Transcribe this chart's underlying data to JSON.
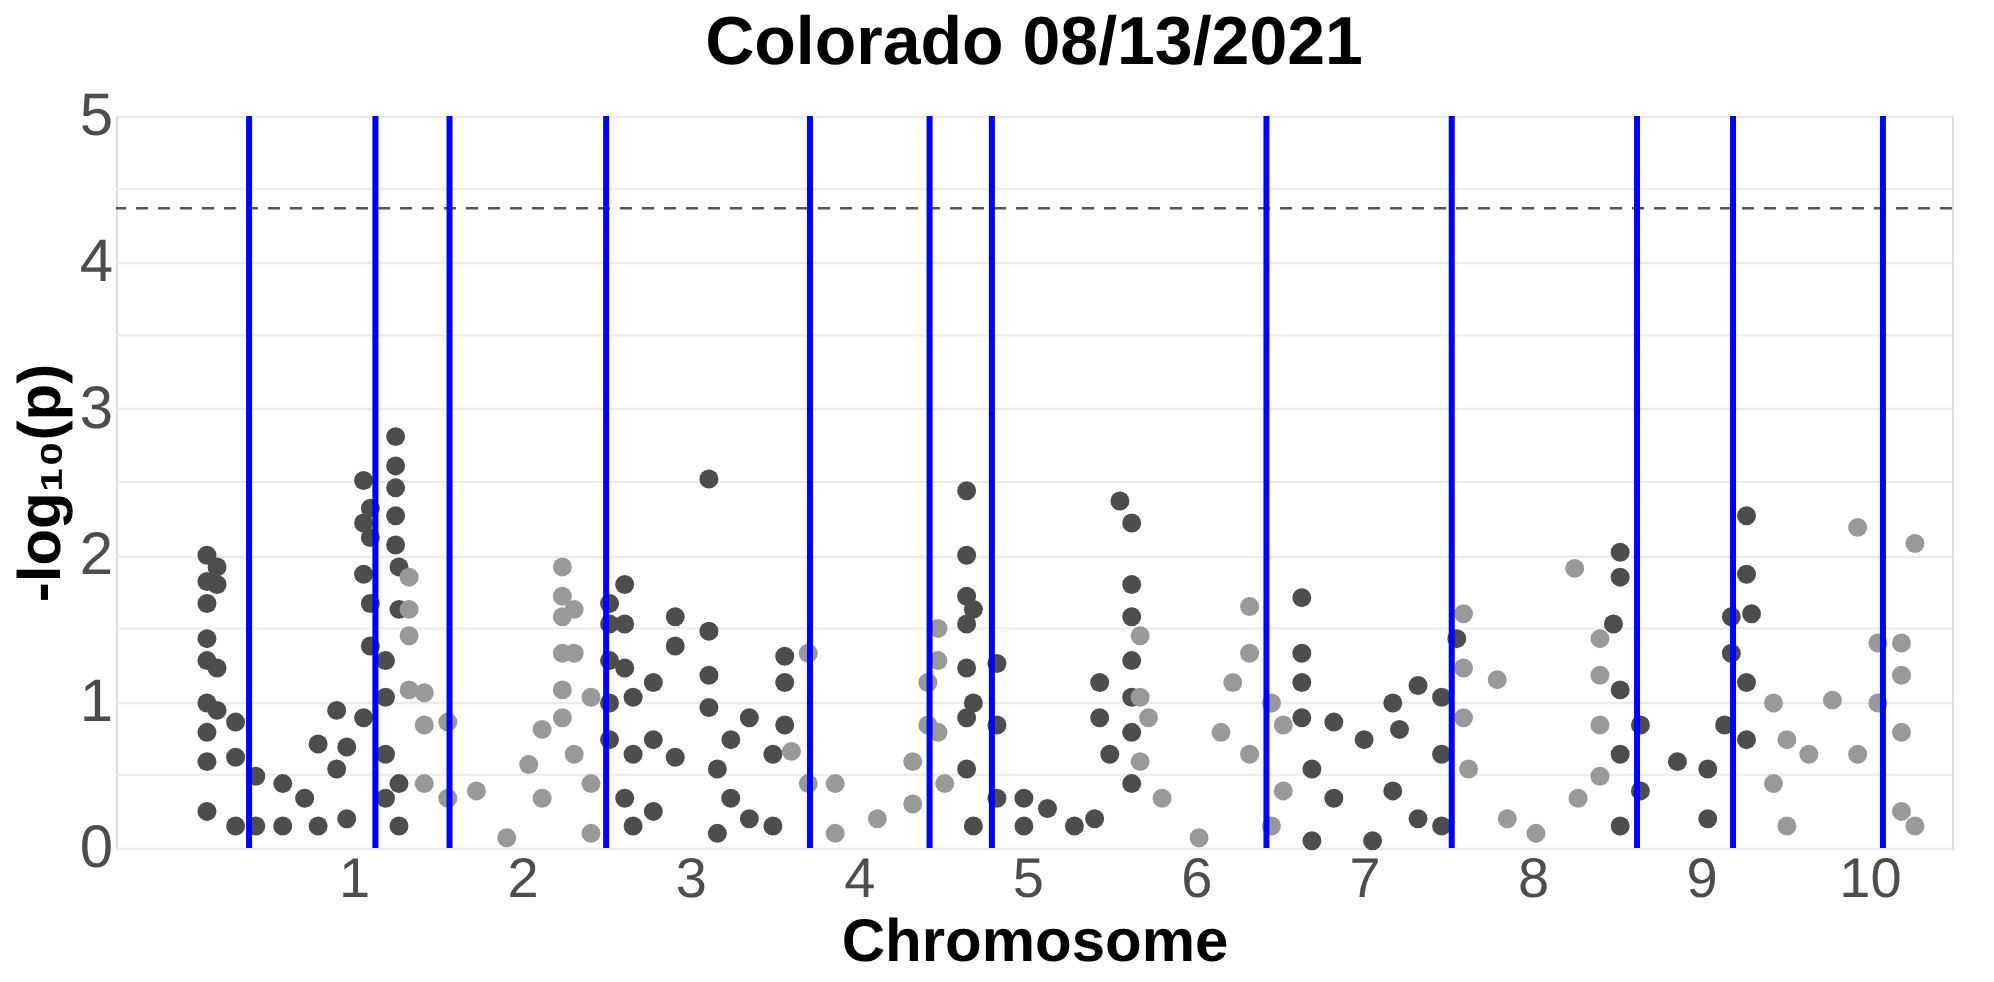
{
  "chart_data": {
    "type": "scatter",
    "title": "Colorado 08/13/2021",
    "xlabel": "Chromosome",
    "ylabel": "-log₁₀(p)",
    "xlim": [
      -0.41,
      10.49
    ],
    "xticks": [
      1,
      2,
      3,
      4,
      5,
      6,
      7,
      8,
      9,
      10
    ],
    "ylim": [
      0,
      5
    ],
    "yticks": [
      0,
      {
        "value": 0.5,
        "label": null
      },
      1,
      {
        "value": 1.5,
        "label": null
      },
      2,
      {
        "value": 2.5,
        "label": null
      },
      3,
      {
        "value": 3.5,
        "label": null
      },
      4,
      {
        "value": 4.5,
        "label": null
      },
      5
    ],
    "grid": "y",
    "ref_lines": [
      {
        "axis": "y",
        "value": 4.37,
        "color": "#555555",
        "line_style": "dashed"
      },
      {
        "axis": "x",
        "value": 0.38,
        "color": "#0000ff"
      },
      {
        "axis": "x",
        "value": 1.13,
        "color": "#0000ff"
      },
      {
        "axis": "x",
        "value": 1.57,
        "color": "#0000ff"
      },
      {
        "axis": "x",
        "value": 2.5,
        "color": "#0000ff"
      },
      {
        "axis": "x",
        "value": 3.71,
        "color": "#0000ff"
      },
      {
        "axis": "x",
        "value": 4.42,
        "color": "#0000ff"
      },
      {
        "axis": "x",
        "value": 4.79,
        "color": "#0000ff"
      },
      {
        "axis": "x",
        "value": 6.42,
        "color": "#0000ff"
      },
      {
        "axis": "x",
        "value": 7.52,
        "color": "#0000ff"
      },
      {
        "axis": "x",
        "value": 8.62,
        "color": "#0000ff"
      },
      {
        "axis": "x",
        "value": 9.19,
        "color": "#0000ff"
      },
      {
        "axis": "x",
        "value": 10.08,
        "color": "#0000ff"
      }
    ],
    "series": [
      {
        "color": "#4d4d4d",
        "x": [
          0.13,
          0.13,
          0.13,
          0.13,
          0.13,
          0.13,
          0.13,
          0.13,
          0.13,
          0.19,
          0.19,
          0.19,
          0.19,
          0.3,
          0.3,
          0.3,
          0.42,
          0.42,
          0.58,
          0.58,
          0.71,
          0.79,
          0.79,
          0.9,
          0.9,
          0.96,
          0.96,
          1.06,
          1.06,
          1.06,
          1.06,
          1.1,
          1.1,
          1.1,
          1.1,
          1.19,
          1.19,
          1.19,
          1.19,
          1.25,
          1.25,
          1.25,
          1.25,
          1.25,
          1.27,
          1.27,
          1.27,
          1.27,
          2.52,
          2.52,
          2.52,
          2.52,
          2.52,
          2.61,
          2.61,
          2.61,
          2.61,
          2.66,
          2.66,
          2.66,
          2.78,
          2.78,
          2.78,
          2.91,
          2.91,
          2.91,
          3.11,
          3.11,
          3.11,
          3.11,
          3.16,
          3.16,
          3.24,
          3.24,
          3.35,
          3.35,
          3.49,
          3.49,
          3.56,
          3.56,
          3.56,
          4.64,
          4.64,
          4.64,
          4.64,
          4.64,
          4.64,
          4.64,
          4.68,
          4.68,
          4.68,
          4.82,
          4.82,
          4.82,
          4.98,
          4.98,
          5.12,
          5.28,
          5.4,
          5.43,
          5.43,
          5.49,
          5.55,
          5.62,
          5.62,
          5.62,
          5.62,
          5.62,
          5.62,
          5.62,
          6.63,
          6.63,
          6.63,
          6.63,
          6.69,
          6.69,
          6.82,
          6.82,
          7.0,
          7.05,
          7.17,
          7.17,
          7.21,
          7.32,
          7.32,
          7.46,
          7.46,
          7.46,
          7.55,
          8.48,
          8.52,
          8.52,
          8.52,
          8.52,
          8.52,
          8.64,
          8.64,
          8.86,
          9.04,
          9.04,
          9.14,
          9.18,
          9.18,
          9.27,
          9.27,
          9.27,
          9.27,
          9.3
        ],
        "values": [
          2.0,
          1.82,
          1.67,
          1.43,
          1.28,
          0.99,
          0.79,
          0.59,
          0.25,
          1.92,
          1.8,
          1.23,
          0.94,
          0.86,
          0.62,
          0.15,
          0.49,
          0.15,
          0.44,
          0.15,
          0.34,
          0.71,
          0.15,
          0.94,
          0.54,
          0.69,
          0.2,
          0.89,
          1.87,
          2.22,
          2.51,
          2.32,
          2.12,
          1.67,
          1.38,
          1.28,
          1.03,
          0.64,
          0.34,
          2.81,
          2.61,
          2.46,
          2.27,
          2.07,
          1.92,
          1.63,
          0.44,
          0.15,
          1.67,
          1.53,
          1.28,
          0.99,
          0.74,
          1.8,
          1.53,
          1.23,
          0.34,
          1.03,
          0.64,
          0.15,
          1.13,
          0.74,
          0.25,
          1.58,
          1.38,
          0.62,
          2.52,
          1.48,
          1.18,
          0.96,
          0.54,
          0.1,
          0.74,
          0.34,
          0.89,
          0.2,
          0.64,
          0.15,
          1.31,
          1.13,
          0.84,
          2.44,
          2.0,
          1.72,
          1.53,
          1.23,
          0.89,
          0.54,
          1.63,
          0.99,
          0.15,
          1.26,
          0.84,
          0.34,
          0.34,
          0.15,
          0.27,
          0.15,
          0.2,
          1.13,
          0.89,
          0.64,
          2.37,
          2.22,
          1.8,
          1.58,
          1.28,
          1.03,
          0.79,
          0.44,
          1.71,
          1.33,
          1.13,
          0.89,
          0.54,
          0.05,
          0.86,
          0.34,
          0.74,
          0.05,
          0.99,
          0.39,
          0.81,
          1.11,
          0.2,
          1.03,
          0.64,
          0.15,
          1.43,
          1.53,
          2.02,
          1.85,
          1.08,
          0.64,
          0.15,
          0.84,
          0.39,
          0.59,
          0.54,
          0.2,
          0.84,
          1.58,
          1.33,
          2.27,
          1.87,
          1.13,
          0.74,
          1.6
        ]
      },
      {
        "color": "#999999",
        "x": [
          1.33,
          1.33,
          1.33,
          1.33,
          1.42,
          1.42,
          1.42,
          1.56,
          1.56,
          1.73,
          1.91,
          2.04,
          2.12,
          2.12,
          2.24,
          2.24,
          2.24,
          2.24,
          2.24,
          2.24,
          2.31,
          2.31,
          2.31,
          2.41,
          2.41,
          2.41,
          3.6,
          3.7,
          3.7,
          3.86,
          3.86,
          4.11,
          4.32,
          4.32,
          4.41,
          4.41,
          4.47,
          4.47,
          4.47,
          4.51,
          5.67,
          5.67,
          5.67,
          5.72,
          5.8,
          6.02,
          6.15,
          6.22,
          6.32,
          6.32,
          6.32,
          6.45,
          6.45,
          6.52,
          6.52,
          7.59,
          7.59,
          7.59,
          7.62,
          7.79,
          7.85,
          8.02,
          8.25,
          8.27,
          8.4,
          8.4,
          8.4,
          8.4,
          9.43,
          9.43,
          9.51,
          9.51,
          9.64,
          9.78,
          9.93,
          9.93,
          10.05,
          10.05,
          10.19,
          10.19,
          10.19,
          10.19,
          10.27,
          10.27
        ],
        "values": [
          1.85,
          1.63,
          1.45,
          1.08,
          1.06,
          0.84,
          0.44,
          0.86,
          0.34,
          0.39,
          0.07,
          0.57,
          0.81,
          0.34,
          1.92,
          1.72,
          1.58,
          1.33,
          1.08,
          0.89,
          1.63,
          1.33,
          0.64,
          1.03,
          0.44,
          0.1,
          0.66,
          1.33,
          0.44,
          0.44,
          0.1,
          0.2,
          0.59,
          0.3,
          1.13,
          0.84,
          1.5,
          1.28,
          0.79,
          0.44,
          1.45,
          1.03,
          0.59,
          0.89,
          0.34,
          0.07,
          0.79,
          1.13,
          1.65,
          1.33,
          0.64,
          0.99,
          0.15,
          0.84,
          0.39,
          1.6,
          1.23,
          0.89,
          0.54,
          1.15,
          0.2,
          0.1,
          1.91,
          0.34,
          1.43,
          1.18,
          0.84,
          0.49,
          0.99,
          0.44,
          0.74,
          0.15,
          0.64,
          1.01,
          2.19,
          0.64,
          1.4,
          0.99,
          1.4,
          1.18,
          0.79,
          0.25,
          2.08,
          0.15
        ]
      }
    ]
  }
}
